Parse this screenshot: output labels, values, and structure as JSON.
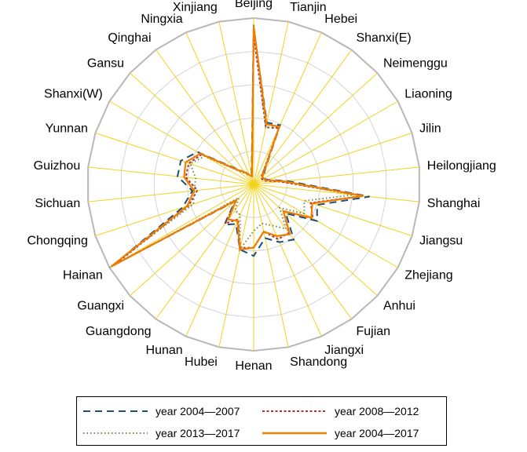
{
  "chart_data": {
    "type": "radar",
    "title": "",
    "categories": [
      "Beijing",
      "Tianjin",
      "Hebei",
      "Shanxi(E)",
      "Neimenggu",
      "Liaoning",
      "Jilin",
      "Heilongjiang",
      "Shanghai",
      "Jiangsu",
      "Zhejiang",
      "Anhui",
      "Fujian",
      "Jiangxi",
      "Shandong",
      "Henan",
      "Hubei",
      "Hunan",
      "Guangdong",
      "Guangxi",
      "Hainan",
      "Chongqing",
      "Sichuan",
      "Guizhou",
      "Yunnan",
      "Shanxi(W)",
      "Gansu",
      "Qinghai",
      "Ningxia",
      "Xinjiang"
    ],
    "rlim": [
      0,
      1
    ],
    "rings": 5,
    "grid": true,
    "legend_position": "bottom",
    "series": [
      {
        "name": "year 2004—2007",
        "color": "#1f4e79",
        "dash": "dashed",
        "values": [
          0.94,
          0.38,
          0.39,
          0.12,
          0.08,
          0.07,
          0.09,
          0.2,
          0.7,
          0.4,
          0.44,
          0.26,
          0.41,
          0.38,
          0.33,
          0.43,
          0.4,
          0.26,
          0.3,
          0.15,
          0.98,
          0.45,
          0.37,
          0.46,
          0.46,
          0.39,
          0.14,
          0.09,
          0.07,
          0.06
        ]
      },
      {
        "name": "year 2008—2012",
        "color": "#b0312f",
        "dash": "dotted-fine",
        "values": [
          0.9,
          0.35,
          0.37,
          0.1,
          0.06,
          0.06,
          0.07,
          0.16,
          0.66,
          0.36,
          0.41,
          0.24,
          0.36,
          0.36,
          0.29,
          0.38,
          0.39,
          0.23,
          0.29,
          0.14,
          0.96,
          0.41,
          0.34,
          0.41,
          0.41,
          0.36,
          0.13,
          0.09,
          0.06,
          0.05
        ]
      },
      {
        "name": "year 2013—2017",
        "color": "#7a8a3f",
        "dash": "dotted",
        "values": [
          0.96,
          0.35,
          0.38,
          0.1,
          0.07,
          0.07,
          0.08,
          0.17,
          0.6,
          0.32,
          0.35,
          0.21,
          0.33,
          0.27,
          0.24,
          0.28,
          0.4,
          0.2,
          0.19,
          0.12,
          1.0,
          0.38,
          0.36,
          0.35,
          0.4,
          0.34,
          0.12,
          0.08,
          0.06,
          0.05
        ]
      },
      {
        "name": "year 2004—2017",
        "color": "#f07d00",
        "dash": "solid",
        "values": [
          0.95,
          0.37,
          0.38,
          0.11,
          0.07,
          0.07,
          0.08,
          0.18,
          0.66,
          0.37,
          0.4,
          0.24,
          0.37,
          0.34,
          0.29,
          0.38,
          0.4,
          0.24,
          0.26,
          0.14,
          0.99,
          0.42,
          0.36,
          0.42,
          0.43,
          0.37,
          0.13,
          0.09,
          0.06,
          0.05
        ]
      }
    ]
  }
}
